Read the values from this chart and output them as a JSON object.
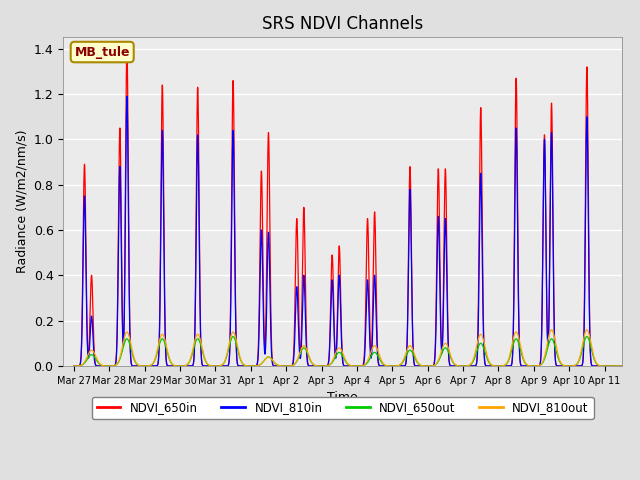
{
  "title": "SRS NDVI Channels",
  "xlabel": "Time",
  "ylabel": "Radiance (W/m2/nm/s)",
  "annotation": "MB_tule",
  "colors": {
    "NDVI_650in": "red",
    "NDVI_810in": "blue",
    "NDVI_650out": "#00cc00",
    "NDVI_810out": "orange"
  },
  "legend_labels": [
    "NDVI_650in",
    "NDVI_810in",
    "NDVI_650out",
    "NDVI_810out"
  ],
  "ylim": [
    0,
    1.45
  ],
  "background_color": "#e0e0e0",
  "plot_bg": "#ebebeb",
  "days": [
    "Mar 27",
    "Mar 28",
    "Mar 29",
    "Mar 30",
    "Mar 31",
    "Apr 1",
    "Apr 2",
    "Apr 3",
    "Apr 4",
    "Apr 5",
    "Apr 6",
    "Apr 7",
    "Apr 8",
    "Apr 9",
    "Apr 10",
    "Apr 11"
  ],
  "peaks_650in": [
    0.4,
    1.4,
    1.24,
    1.23,
    1.26,
    1.03,
    0.7,
    0.53,
    0.68,
    0.88,
    0.87,
    1.14,
    1.27,
    1.16,
    1.32,
    0.0
  ],
  "peaks_810in": [
    0.22,
    1.19,
    1.04,
    1.02,
    1.04,
    0.59,
    0.4,
    0.4,
    0.4,
    0.78,
    0.65,
    0.85,
    1.05,
    1.03,
    1.1,
    0.0
  ],
  "peaks_650out": [
    0.05,
    0.12,
    0.12,
    0.12,
    0.13,
    0.04,
    0.08,
    0.06,
    0.06,
    0.07,
    0.08,
    0.1,
    0.12,
    0.12,
    0.13,
    0.0
  ],
  "peaks_810out": [
    0.07,
    0.15,
    0.14,
    0.14,
    0.15,
    0.04,
    0.09,
    0.08,
    0.09,
    0.09,
    0.1,
    0.14,
    0.15,
    0.16,
    0.16,
    0.0
  ],
  "sub_peaks_650in": [
    0.89,
    1.05,
    0.0,
    0.0,
    0.0,
    0.86,
    0.65,
    0.49,
    0.65,
    0.0,
    0.87,
    0.0,
    0.0,
    1.02,
    0.0,
    0.0
  ],
  "sub_peaks_810in": [
    0.75,
    0.88,
    0.0,
    0.0,
    0.0,
    0.6,
    0.35,
    0.38,
    0.38,
    0.0,
    0.66,
    0.0,
    0.0,
    1.0,
    0.0,
    0.0
  ]
}
